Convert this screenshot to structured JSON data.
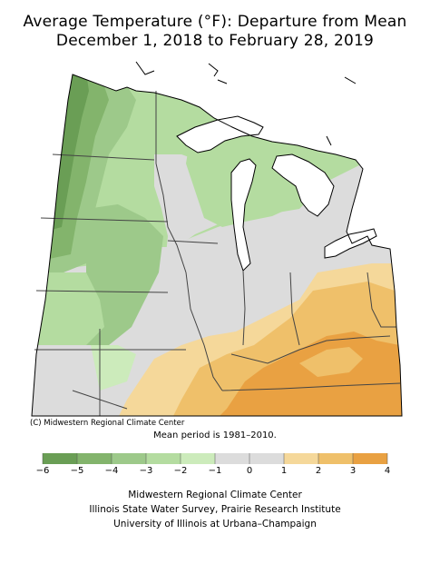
{
  "title_line1": "Average Temperature (°F): Departure from Mean",
  "title_line2": "December 1, 2018 to February 28, 2019",
  "copyright": "(C) Midwestern Regional Climate Center",
  "mean_period": "Mean period is 1981–2010.",
  "legend": {
    "bins": [
      {
        "from": -6,
        "to": -5,
        "color": "#6a9e55"
      },
      {
        "from": -5,
        "to": -4,
        "color": "#83b46c"
      },
      {
        "from": -4,
        "to": -3,
        "color": "#9dc98a"
      },
      {
        "from": -3,
        "to": -2,
        "color": "#b4dca0"
      },
      {
        "from": -2,
        "to": -1,
        "color": "#ccebbb"
      },
      {
        "from": -1,
        "to": 0,
        "color": "#dcdcdc"
      },
      {
        "from": 0,
        "to": 1,
        "color": "#dcdcdc"
      },
      {
        "from": 1,
        "to": 2,
        "color": "#f5d89a"
      },
      {
        "from": 2,
        "to": 3,
        "color": "#efc06a"
      },
      {
        "from": 3,
        "to": 4,
        "color": "#e9a142"
      }
    ],
    "tick_labels": [
      "−6",
      "−5",
      "−4",
      "−3",
      "−2",
      "−1",
      "0",
      "1",
      "2",
      "3",
      "4"
    ]
  },
  "credits": {
    "line1": "Midwestern Regional Climate Center",
    "line2": "Illinois State Water Survey, Prairie Research Institute",
    "line3": "University of Illinois at Urbana–Champaign"
  },
  "map_colors": {
    "lake": "#ffffff",
    "neutral": "#dcdcdc",
    "border": "#444444"
  }
}
